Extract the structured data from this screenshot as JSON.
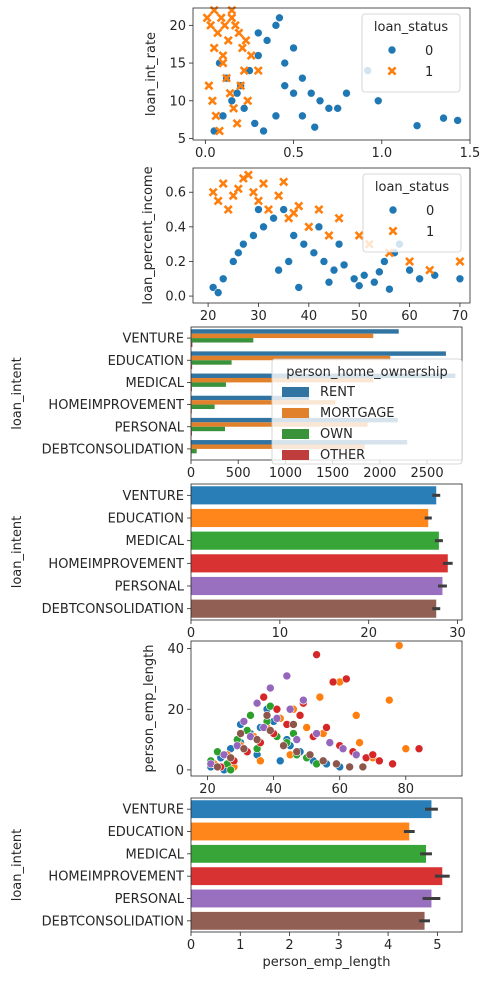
{
  "colors": {
    "blue": "#1f77b4",
    "orange": "#ff7f0e",
    "green": "#2ca02c",
    "red": "#d62728",
    "purple": "#9467bd",
    "brown": "#8c564b"
  },
  "chart_data": [
    {
      "type": "scatter",
      "title": "",
      "xlabel": "",
      "ylabel": "loan_int_rate",
      "xlim": [
        -0.07,
        1.5
      ],
      "ylim": [
        4.8,
        22.3
      ],
      "xticks": [
        "0.0",
        "0.5",
        "1.0",
        "1.5"
      ],
      "yticks": [
        "5",
        "10",
        "15",
        "20"
      ],
      "legend": {
        "title": "loan_status",
        "entries": [
          "0",
          "1"
        ],
        "placement": "top-right"
      },
      "series": [
        {
          "name": "0",
          "marker": "circle",
          "color": "#1f77b4",
          "x": [
            0.05,
            0.1,
            0.15,
            0.2,
            0.25,
            0.3,
            0.35,
            0.4,
            0.45,
            0.5,
            0.55,
            0.6,
            0.65,
            0.7,
            0.75,
            0.8,
            0.98,
            1.2,
            1.35,
            1.43,
            0.92,
            0.5,
            0.45,
            0.4,
            0.33,
            0.28,
            0.22,
            0.18,
            0.12,
            0.08,
            0.3,
            0.42,
            0.55,
            0.62
          ],
          "y": [
            6,
            8,
            10,
            12,
            14,
            16,
            18,
            20,
            15,
            11,
            13,
            11,
            10,
            9,
            9,
            11,
            10,
            6.7,
            7.7,
            7.4,
            14,
            17,
            12,
            8,
            6,
            7,
            9,
            11,
            13,
            15,
            19,
            21,
            8,
            6.5
          ]
        },
        {
          "name": "1",
          "marker": "x",
          "color": "#ff7f0e",
          "x": [
            0.01,
            0.03,
            0.05,
            0.07,
            0.09,
            0.11,
            0.13,
            0.15,
            0.17,
            0.19,
            0.21,
            0.23,
            0.26,
            0.3,
            0.02,
            0.04,
            0.06,
            0.08,
            0.1,
            0.12,
            0.14,
            0.16,
            0.18,
            0.2,
            0.22,
            0.24,
            0.05,
            0.1,
            0.15
          ],
          "y": [
            21,
            20,
            22,
            19,
            21,
            20,
            18,
            21,
            20,
            19,
            17,
            18,
            16,
            14,
            12,
            10,
            8,
            6,
            15,
            13,
            11,
            9,
            7,
            12,
            14,
            10,
            17,
            16,
            22
          ]
        }
      ]
    },
    {
      "type": "scatter",
      "title": "",
      "xlabel": "",
      "ylabel": "loan_percent_income",
      "xlim": [
        17,
        72
      ],
      "ylim": [
        -0.04,
        0.74
      ],
      "xticks": [
        "20",
        "30",
        "40",
        "50",
        "60",
        "70"
      ],
      "yticks": [
        "0.0",
        "0.2",
        "0.4",
        "0.6"
      ],
      "legend": {
        "title": "loan_status",
        "entries": [
          "0",
          "1"
        ],
        "placement": "top-right"
      },
      "series": [
        {
          "name": "0",
          "marker": "circle",
          "color": "#1f77b4",
          "x": [
            21,
            23,
            25,
            27,
            29,
            31,
            33,
            35,
            37,
            39,
            41,
            43,
            45,
            47,
            49,
            51,
            53,
            55,
            57,
            58,
            60,
            62,
            65,
            70,
            22,
            26,
            30,
            34,
            38,
            42,
            46,
            50,
            54,
            36,
            44,
            56
          ],
          "y": [
            0.05,
            0.1,
            0.2,
            0.3,
            0.35,
            0.4,
            0.45,
            0.5,
            0.35,
            0.3,
            0.25,
            0.2,
            0.15,
            0.18,
            0.1,
            0.12,
            0.08,
            0.2,
            0.25,
            0.3,
            0.15,
            0.1,
            0.12,
            0.1,
            0.02,
            0.25,
            0.5,
            0.15,
            0.05,
            0.4,
            0.3,
            0.06,
            0.14,
            0.2,
            0.08,
            0.04
          ]
        },
        {
          "name": "1",
          "marker": "x",
          "color": "#ff7f0e",
          "x": [
            21,
            22,
            23,
            24,
            25,
            26,
            27,
            28,
            29,
            30,
            32,
            34,
            36,
            38,
            40,
            42,
            44,
            46,
            50,
            52,
            56,
            60,
            64,
            70,
            31,
            35,
            37
          ],
          "y": [
            0.6,
            0.55,
            0.65,
            0.5,
            0.58,
            0.62,
            0.68,
            0.7,
            0.6,
            0.55,
            0.5,
            0.58,
            0.45,
            0.52,
            0.4,
            0.5,
            0.35,
            0.45,
            0.35,
            0.3,
            0.25,
            0.2,
            0.15,
            0.2,
            0.65,
            0.66,
            0.48
          ]
        }
      ]
    },
    {
      "type": "bar",
      "orientation": "horizontal",
      "title": "",
      "xlabel": "",
      "ylabel": "loan_intent",
      "xlim": [
        0,
        2870
      ],
      "xticks": [
        "0",
        "500",
        "1000",
        "1500",
        "2000",
        "2500"
      ],
      "categories": [
        "VENTURE",
        "EDUCATION",
        "MEDICAL",
        "HOMEIMPROVEMENT",
        "PERSONAL",
        "DEBTCONSOLIDATION"
      ],
      "legend": {
        "title": "person_home_ownership",
        "entries": [
          "RENT",
          "MORTGAGE",
          "OWN",
          "OTHER"
        ],
        "placement": "top-right"
      },
      "series": [
        {
          "name": "RENT",
          "color": "#3274a1",
          "values": [
            2200,
            2700,
            2800,
            1250,
            2190,
            2290
          ]
        },
        {
          "name": "MORTGAGE",
          "color": "#e1812c",
          "values": [
            1930,
            2110,
            1930,
            1530,
            1870,
            1840
          ]
        },
        {
          "name": "OWN",
          "color": "#3a923a",
          "values": [
            660,
            430,
            370,
            250,
            360,
            60
          ]
        },
        {
          "name": "OTHER",
          "color": "#c03d3e",
          "values": [
            15,
            12,
            10,
            8,
            10,
            6
          ]
        }
      ]
    },
    {
      "type": "bar",
      "orientation": "horizontal",
      "title": "",
      "xlabel": "",
      "ylabel": "loan_intent",
      "xlim": [
        0,
        30.5
      ],
      "xticks": [
        "0",
        "10",
        "20",
        "30"
      ],
      "categories": [
        "VENTURE",
        "EDUCATION",
        "MEDICAL",
        "HOMEIMPROVEMENT",
        "PERSONAL",
        "DEBTCONSOLIDATION"
      ],
      "values": [
        27.6,
        26.7,
        27.9,
        28.9,
        28.3,
        27.6
      ],
      "errors": [
        0.45,
        0.4,
        0.45,
        0.55,
        0.5,
        0.45
      ]
    },
    {
      "type": "scatter",
      "title": "",
      "xlabel": "",
      "ylabel": "person_emp_length",
      "xlim": [
        15,
        97
      ],
      "ylim": [
        -2,
        42.5
      ],
      "xticks": [
        "20",
        "40",
        "60",
        "80"
      ],
      "yticks": [
        "0",
        "20",
        "40"
      ],
      "series": [
        {
          "name": "VENTURE",
          "color": "#1f77b4",
          "x": [
            21,
            24,
            27,
            30,
            33,
            36,
            40,
            44,
            48,
            52,
            56,
            60,
            25,
            35,
            45,
            38,
            42,
            30
          ],
          "y": [
            1,
            4,
            7,
            9,
            12,
            14,
            16,
            10,
            6,
            3,
            2,
            1,
            0,
            5,
            8,
            20,
            3,
            15
          ]
        },
        {
          "name": "EDUCATION",
          "color": "#ff7f0e",
          "x": [
            22,
            26,
            30,
            34,
            38,
            42,
            46,
            50,
            55,
            60,
            65,
            70,
            75,
            78,
            80,
            66,
            54,
            45,
            36,
            28
          ],
          "y": [
            2,
            5,
            8,
            11,
            14,
            17,
            20,
            14,
            12,
            29,
            18,
            4,
            23,
            41,
            7,
            9,
            24,
            5,
            3,
            1
          ]
        },
        {
          "name": "MEDICAL",
          "color": "#2ca02c",
          "x": [
            21,
            23,
            26,
            29,
            32,
            35,
            38,
            41,
            44,
            47,
            50,
            53,
            27,
            33,
            39,
            46
          ],
          "y": [
            3,
            6,
            2,
            10,
            13,
            7,
            16,
            11,
            9,
            5,
            4,
            2,
            0,
            18,
            21,
            12
          ]
        },
        {
          "name": "HOMEIMPROVEMENT",
          "color": "#d62728",
          "x": [
            24,
            28,
            32,
            36,
            40,
            44,
            48,
            52,
            56,
            60,
            64,
            68,
            72,
            76,
            84,
            58,
            62,
            53,
            49,
            41,
            37,
            70
          ],
          "y": [
            1,
            3,
            6,
            9,
            12,
            15,
            18,
            11,
            14,
            8,
            6,
            4,
            3,
            2,
            7,
            29,
            30,
            38,
            22,
            20,
            24,
            5
          ]
        },
        {
          "name": "PERSONAL",
          "color": "#9467bd",
          "x": [
            21,
            25,
            29,
            33,
            37,
            41,
            45,
            49,
            53,
            57,
            61,
            65,
            44,
            39,
            35,
            31,
            47
          ],
          "y": [
            2,
            5,
            8,
            11,
            14,
            17,
            20,
            23,
            12,
            9,
            7,
            5,
            31,
            27,
            22,
            16,
            10
          ]
        },
        {
          "name": "DEBTCONSOLIDATION",
          "color": "#8c564b",
          "x": [
            23,
            27,
            31,
            35,
            39,
            43,
            47,
            51,
            55,
            59,
            63,
            67,
            30,
            38,
            46
          ],
          "y": [
            1,
            4,
            7,
            10,
            13,
            8,
            6,
            5,
            3,
            2,
            1,
            1,
            12,
            18,
            15
          ]
        }
      ]
    },
    {
      "type": "bar",
      "orientation": "horizontal",
      "title": "",
      "xlabel": "person_emp_length",
      "ylabel": "loan_intent",
      "xlim": [
        0,
        5.5
      ],
      "xticks": [
        "0",
        "1",
        "2",
        "3",
        "4",
        "5"
      ],
      "categories": [
        "VENTURE",
        "EDUCATION",
        "MEDICAL",
        "HOMEIMPROVEMENT",
        "PERSONAL",
        "DEBTCONSOLIDATION"
      ],
      "values": [
        4.88,
        4.43,
        4.77,
        5.1,
        4.88,
        4.74
      ],
      "errors": [
        0.13,
        0.11,
        0.12,
        0.15,
        0.18,
        0.11
      ]
    }
  ]
}
